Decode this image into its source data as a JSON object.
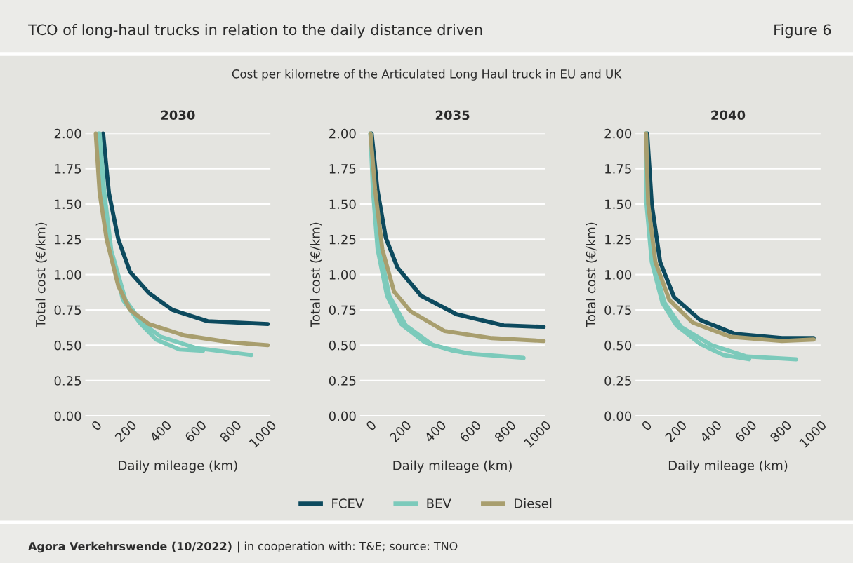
{
  "chart_data": [
    {
      "type": "line",
      "title": "2030",
      "xlabel": "Daily mileage (km)",
      "ylabel": "Total cost (€/km)",
      "xlim": [
        -60,
        1000
      ],
      "xticks": [
        0,
        200,
        400,
        600,
        800,
        1000
      ],
      "ylim": [
        0,
        2.0
      ],
      "yticks": [
        {
          "value": 0,
          "label": "0.00"
        },
        {
          "value": 0.25,
          "label": "0.25"
        },
        {
          "value": 0.5,
          "label": "0.50"
        },
        {
          "value": 0.75,
          "label": "0.75"
        },
        {
          "value": 1.0,
          "label": "1.00"
        },
        {
          "value": 1.25,
          "label": "1.25"
        },
        {
          "value": 1.5,
          "label": "1.50"
        },
        {
          "value": 1.75,
          "label": "1.75"
        },
        {
          "value": 2.0,
          "label": "2.00"
        }
      ],
      "grid": "y",
      "line_style": "solid",
      "legend": "bottom",
      "series": [
        {
          "name": "FCEV",
          "color": "#0d4a5e",
          "x": [
            42,
            75,
            129,
            196,
            304,
            439,
            641,
            985
          ],
          "values": [
            2.0,
            1.58,
            1.25,
            1.02,
            0.87,
            0.75,
            0.67,
            0.65
          ]
        },
        {
          "name": "BEV",
          "color": "#7ccabb",
          "x": [
            22,
            49,
            89,
            170,
            264,
            372,
            574,
            890
          ],
          "values": [
            2.0,
            1.58,
            1.17,
            0.82,
            0.66,
            0.56,
            0.48,
            0.43
          ]
        },
        {
          "color": "#7ccabb",
          "x": [
            15,
            42,
            82,
            156,
            251,
            345,
            479,
            614
          ],
          "values": [
            2.0,
            1.58,
            1.17,
            0.82,
            0.66,
            0.54,
            0.47,
            0.46
          ]
        },
        {
          "name": "Diesel",
          "color": "#a89e6e",
          "x": [
            0,
            22,
            62,
            129,
            196,
            304,
            506,
            775,
            985
          ],
          "values": [
            2.0,
            1.58,
            1.25,
            0.92,
            0.75,
            0.65,
            0.57,
            0.52,
            0.5
          ]
        }
      ]
    },
    {
      "type": "line",
      "title": "2035",
      "xlabel": "Daily mileage (km)",
      "ylabel": "Total cost (€/km)",
      "xlim": [
        -60,
        1000
      ],
      "xticks": [
        0,
        200,
        400,
        600,
        800,
        1000
      ],
      "ylim": [
        0,
        2.0
      ],
      "yticks": [
        {
          "value": 0,
          "label": "0.00"
        },
        {
          "value": 0.25,
          "label": "0.25"
        },
        {
          "value": 0.5,
          "label": "0.50"
        },
        {
          "value": 0.75,
          "label": "0.75"
        },
        {
          "value": 1.0,
          "label": "1.00"
        },
        {
          "value": 1.25,
          "label": "1.25"
        },
        {
          "value": 1.5,
          "label": "1.50"
        },
        {
          "value": 1.75,
          "label": "1.75"
        },
        {
          "value": 2.0,
          "label": "2.00"
        }
      ],
      "grid": "y",
      "line_style": "solid",
      "series": [
        {
          "color": "#0d4a5e",
          "x": [
            7,
            40,
            88,
            155,
            290,
            492,
            763,
            992
          ],
          "values": [
            2.0,
            1.6,
            1.26,
            1.05,
            0.85,
            0.72,
            0.64,
            0.63
          ]
        },
        {
          "color": "#7ccabb",
          "x": [
            0,
            20,
            54,
            108,
            203,
            358,
            560,
            877
          ],
          "values": [
            2.0,
            1.6,
            1.18,
            0.85,
            0.64,
            0.5,
            0.44,
            0.41
          ]
        },
        {
          "color": "#7ccabb",
          "x": [
            0,
            14,
            41,
            95,
            176,
            311,
            473,
            581
          ],
          "values": [
            2.0,
            1.6,
            1.18,
            0.85,
            0.65,
            0.52,
            0.46,
            0.44
          ]
        },
        {
          "color": "#a89e6e",
          "x": [
            0,
            27,
            68,
            135,
            230,
            425,
            695,
            992
          ],
          "values": [
            2.0,
            1.6,
            1.18,
            0.88,
            0.74,
            0.6,
            0.55,
            0.53
          ]
        }
      ]
    },
    {
      "type": "line",
      "title": "2040",
      "xlabel": "Daily mileage (km)",
      "ylabel": "Total cost (€/km)",
      "xlim": [
        -60,
        1000
      ],
      "xticks": [
        0,
        200,
        400,
        600,
        800,
        1000
      ],
      "ylim": [
        0,
        2.0
      ],
      "yticks": [
        {
          "value": 0,
          "label": "0.00"
        },
        {
          "value": 0.25,
          "label": "0.25"
        },
        {
          "value": 0.5,
          "label": "0.50"
        },
        {
          "value": 0.75,
          "label": "0.75"
        },
        {
          "value": 1.0,
          "label": "1.00"
        },
        {
          "value": 1.25,
          "label": "1.25"
        },
        {
          "value": 1.5,
          "label": "1.50"
        },
        {
          "value": 1.75,
          "label": "1.75"
        },
        {
          "value": 2.0,
          "label": "2.00"
        }
      ],
      "grid": "y",
      "line_style": "solid",
      "series": [
        {
          "color": "#0d4a5e",
          "x": [
            7,
            33,
            81,
            161,
            309,
            510,
            779,
            960
          ],
          "values": [
            2.0,
            1.5,
            1.09,
            0.84,
            0.68,
            0.58,
            0.55,
            0.55
          ]
        },
        {
          "color": "#7ccabb",
          "x": [
            0,
            7,
            40,
            107,
            201,
            376,
            578,
            860
          ],
          "values": [
            2.0,
            1.5,
            1.09,
            0.8,
            0.63,
            0.5,
            0.42,
            0.4
          ]
        },
        {
          "color": "#7ccabb",
          "x": [
            0,
            3,
            33,
            94,
            175,
            309,
            444,
            591
          ],
          "values": [
            2.0,
            1.5,
            1.09,
            0.8,
            0.64,
            0.51,
            0.43,
            0.4
          ]
        },
        {
          "color": "#a89e6e",
          "x": [
            0,
            13,
            54,
            134,
            268,
            484,
            779,
            960
          ],
          "values": [
            2.0,
            1.5,
            1.09,
            0.82,
            0.66,
            0.56,
            0.53,
            0.54
          ]
        }
      ]
    },
    {
      "type": "other",
      "title": "TCO of long-haul trucks in relation to the daily distance driven",
      "subtitle": "Cost per kilometre of the Articulated Long Haul truck in EU and UK",
      "annotations": [
        "Figure 6",
        "Agora Verkehrswende (10/2022)",
        "| in cooperation with: T&E; source: TNO"
      ]
    }
  ]
}
